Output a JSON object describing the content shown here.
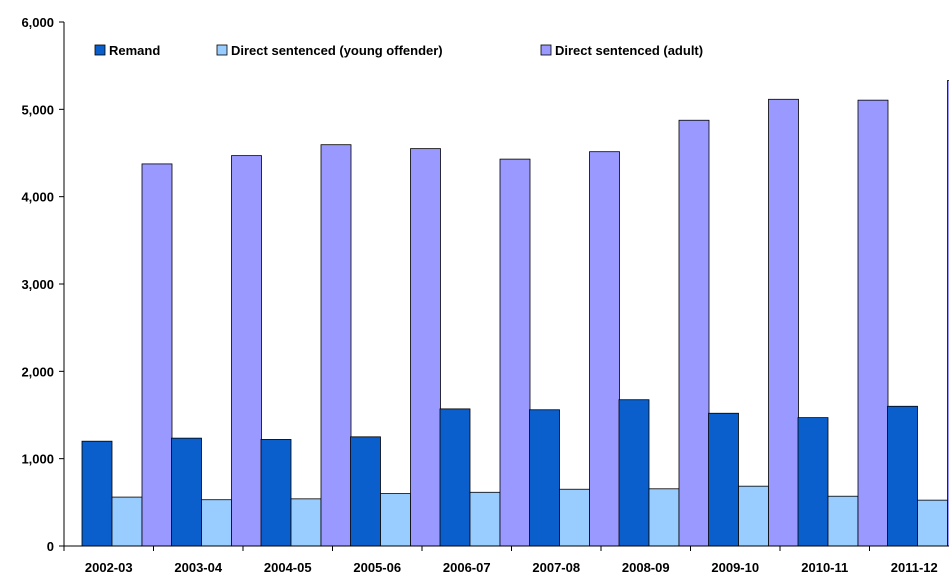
{
  "chart_data": {
    "type": "bar",
    "categories": [
      "2002-03",
      "2003-04",
      "2004-05",
      "2005-06",
      "2006-07",
      "2007-08",
      "2008-09",
      "2009-10",
      "2010-11",
      "2011-12"
    ],
    "series": [
      {
        "name": "Remand",
        "color": "#0a5fcc",
        "values": [
          1200,
          1235,
          1220,
          1250,
          1570,
          1560,
          1675,
          1520,
          1470,
          1600
        ]
      },
      {
        "name": "Direct sentenced (young offender)",
        "color": "#99ccff",
        "values": [
          560,
          530,
          540,
          600,
          615,
          650,
          655,
          685,
          570,
          525
        ]
      },
      {
        "name": "Direct sentenced (adult)",
        "color": "#9999ff",
        "values": [
          4375,
          4470,
          4595,
          4550,
          4430,
          4515,
          4875,
          5115,
          5105,
          5330
        ]
      }
    ],
    "ylim": [
      0,
      6000
    ],
    "yticks": [
      {
        "value": 0,
        "label": "0"
      },
      {
        "value": 1000,
        "label": "1,000"
      },
      {
        "value": 2000,
        "label": "2,000"
      },
      {
        "value": 3000,
        "label": "3,000"
      },
      {
        "value": 4000,
        "label": "4,000"
      },
      {
        "value": 5000,
        "label": "5,000"
      },
      {
        "value": 6000,
        "label": "6,000"
      }
    ],
    "title": "",
    "xlabel": "",
    "ylabel": "",
    "legend_position": "top-left",
    "grid": false
  }
}
